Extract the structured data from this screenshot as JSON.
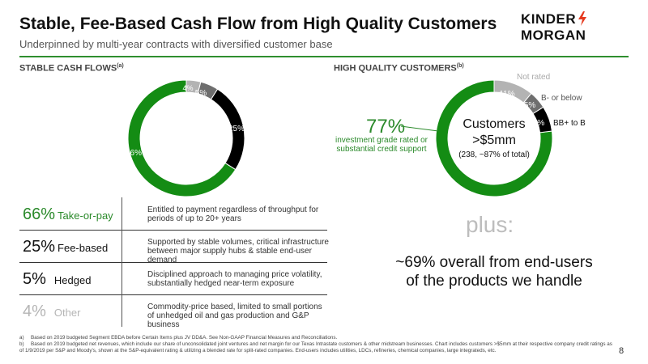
{
  "header": {
    "title": "Stable, Fee-Based Cash Flow from High Quality Customers",
    "subtitle": "Underpinned by multi-year contracts with diversified customer base",
    "logo_text_left": "KINDER",
    "logo_text_right": "MORGAN",
    "accent_color": "#2f8f2f"
  },
  "left": {
    "heading": "STABLE CASH FLOWS",
    "heading_note": "(a)",
    "donut": {
      "segments": [
        {
          "label": "66%",
          "value": 66,
          "color": "#148c14"
        },
        {
          "label": "4%",
          "value": 4,
          "color": "#b3b3b3"
        },
        {
          "label": "5%",
          "value": 5,
          "color": "#6e6e6e"
        },
        {
          "label": "25%",
          "value": 25,
          "color": "#000000"
        }
      ]
    },
    "rows": [
      {
        "pct": "66%",
        "name": "Take-or-pay",
        "desc": "Entitled to payment regardless of throughput for periods of up to 20+ years"
      },
      {
        "pct": "25%",
        "name": "Fee-based",
        "desc": "Supported by stable volumes, critical infrastructure between major supply hubs & stable end-user demand"
      },
      {
        "pct": "5%",
        "name": "Hedged",
        "desc": "Disciplined approach to managing price volatility, substantially hedged near-term exposure"
      },
      {
        "pct": "4%",
        "name": "Other",
        "desc": "Commodity-price based, limited to small portions of unhedged oil and gas production and G&P business"
      }
    ]
  },
  "right": {
    "heading": "HIGH QUALITY CUSTOMERS",
    "heading_note": "(b)",
    "donut": {
      "segments": [
        {
          "label": "77%",
          "value": 77,
          "color": "#148c14"
        },
        {
          "label": "11%",
          "value": 11,
          "color": "#b3b3b3"
        },
        {
          "label": "5%",
          "value": 5,
          "color": "#6e6e6e"
        },
        {
          "label": "7%",
          "value": 7,
          "color": "#000000"
        }
      ]
    },
    "label_not_rated": "Not rated",
    "label_bminus": "B- or below",
    "label_bbb": "BB+ to B",
    "callout_pct": "77%",
    "callout_text": "investment grade rated or substantial credit support",
    "center_line1": "Customers",
    "center_line2": ">$5mm",
    "center_line3": "(238, ~87% of total)",
    "plus": "plus:",
    "enduser_line1": "~69% overall from end-users",
    "enduser_line2": "of the products we handle"
  },
  "footnotes": {
    "a_tag": "a)",
    "a_text": "Based on 2019 budgeted Segment EBDA before Certain Items plus JV DD&A. See Non-GAAP Financial Measures and Reconciliations.",
    "b_tag": "b)",
    "b_text": "Based on 2019 budgeted net revenues, which include our share of unconsolidated joint ventures and net margin for our Texas Intrastate customers & other midstream businesses. Chart includes customers >$5mm at their respective company credit ratings as of 1/9/2019 per S&P and Moody's, shown at the S&P-equivalent rating & utilizing a blended rate for split-rated companies. End-users includes utilities, LDCs, refineries, chemical companies, large integrateds, etc."
  },
  "page_number": "8"
}
